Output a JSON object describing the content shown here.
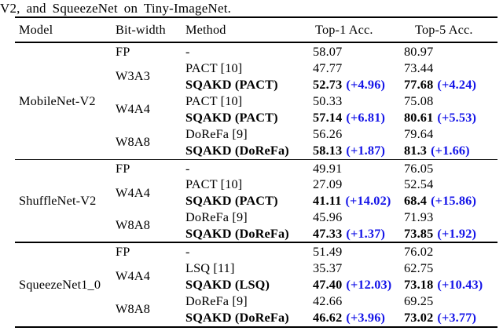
{
  "caption": "V2, and SqueezeNet on Tiny-ImageNet.",
  "colors": {
    "accent_blue": "#1414e8",
    "text": "#000000",
    "background": "#ffffff"
  },
  "table": {
    "columns": [
      "Model",
      "Bit-width",
      "Method",
      "Top-1 Acc.",
      "Top-5 Acc."
    ],
    "sections": [
      {
        "model": "MobileNet-V2",
        "groups": [
          {
            "bitwidth": "FP",
            "rows": [
              {
                "method": "-",
                "top1": "58.07",
                "top5": "80.97"
              }
            ]
          },
          {
            "bitwidth": "W3A3",
            "rows": [
              {
                "method": "PACT [10]",
                "top1": "47.77",
                "top5": "73.44"
              },
              {
                "method": "SQAKD (PACT)",
                "top1": "52.73",
                "top1_gain": "(+4.96)",
                "top5": "77.68",
                "top5_gain": "(+4.24)"
              }
            ]
          },
          {
            "bitwidth": "W4A4",
            "rows": [
              {
                "method": "PACT [10]",
                "top1": "50.33",
                "top5": "75.08"
              },
              {
                "method": "SQAKD (PACT)",
                "top1": "57.14",
                "top1_gain": "(+6.81)",
                "top5": "80.61",
                "top5_gain": "(+5.53)"
              }
            ]
          },
          {
            "bitwidth": "W8A8",
            "rows": [
              {
                "method": "DoReFa [9]",
                "top1": "56.26",
                "top5": "79.64"
              },
              {
                "method": "SQAKD (DoReFa)",
                "top1": "58.13",
                "top1_gain": "(+1.87)",
                "top5": "81.3",
                "top5_gain": "(+1.66)"
              }
            ]
          }
        ]
      },
      {
        "model": "ShuffleNet-V2",
        "groups": [
          {
            "bitwidth": "FP",
            "rows": [
              {
                "method": "-",
                "top1": "49.91",
                "top5": "76.05"
              }
            ]
          },
          {
            "bitwidth": "W4A4",
            "rows": [
              {
                "method": "PACT [10]",
                "top1": "27.09",
                "top5": "52.54"
              },
              {
                "method": "SQAKD (PACT)",
                "top1": "41.11",
                "top1_gain": "(+14.02)",
                "top5": "68.4",
                "top5_gain": "(+15.86)"
              }
            ]
          },
          {
            "bitwidth": "W8A8",
            "rows": [
              {
                "method": "DoReFa [9]",
                "top1": "45.96",
                "top5": "71.93"
              },
              {
                "method": "SQAKD (DoReFa)",
                "top1": "47.33",
                "top1_gain": "(+1.37)",
                "top5": "73.85",
                "top5_gain": "(+1.92)"
              }
            ]
          }
        ]
      },
      {
        "model": "SqueezeNet1_0",
        "groups": [
          {
            "bitwidth": "FP",
            "rows": [
              {
                "method": "-",
                "top1": "51.49",
                "top5": "76.02"
              }
            ]
          },
          {
            "bitwidth": "W4A4",
            "rows": [
              {
                "method": "LSQ [11]",
                "top1": "35.37",
                "top5": "62.75"
              },
              {
                "method": "SQAKD (LSQ)",
                "top1": "47.40",
                "top1_gain": "(+12.03)",
                "top5": "73.18",
                "top5_gain": "(+10.43)"
              }
            ]
          },
          {
            "bitwidth": "W8A8",
            "rows": [
              {
                "method": "DoReFa [9]",
                "top1": "42.66",
                "top5": "69.25"
              },
              {
                "method": "SQAKD (DoReFa)",
                "top1": "46.62",
                "top1_gain": "(+3.96)",
                "top5": "73.02",
                "top5_gain": "(+3.77)"
              }
            ]
          }
        ]
      }
    ]
  }
}
